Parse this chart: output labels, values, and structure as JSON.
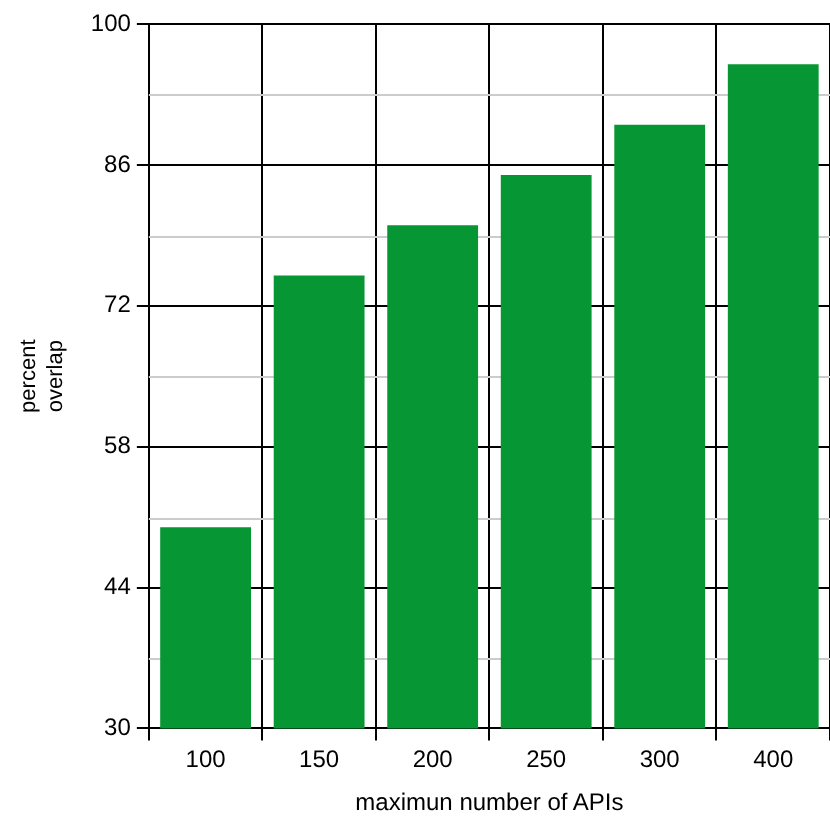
{
  "chart_data": {
    "type": "bar",
    "xlabel": "maximun number of APIs",
    "ylabel": "percent\noverlap",
    "categories": [
      "100",
      "150",
      "200",
      "250",
      "300",
      "400"
    ],
    "values": [
      50,
      75,
      80,
      85,
      90,
      96
    ],
    "color": "#069633",
    "ylim": [
      30,
      100
    ],
    "yticks": [
      30,
      44,
      58,
      72,
      86,
      100
    ],
    "grid": true
  }
}
